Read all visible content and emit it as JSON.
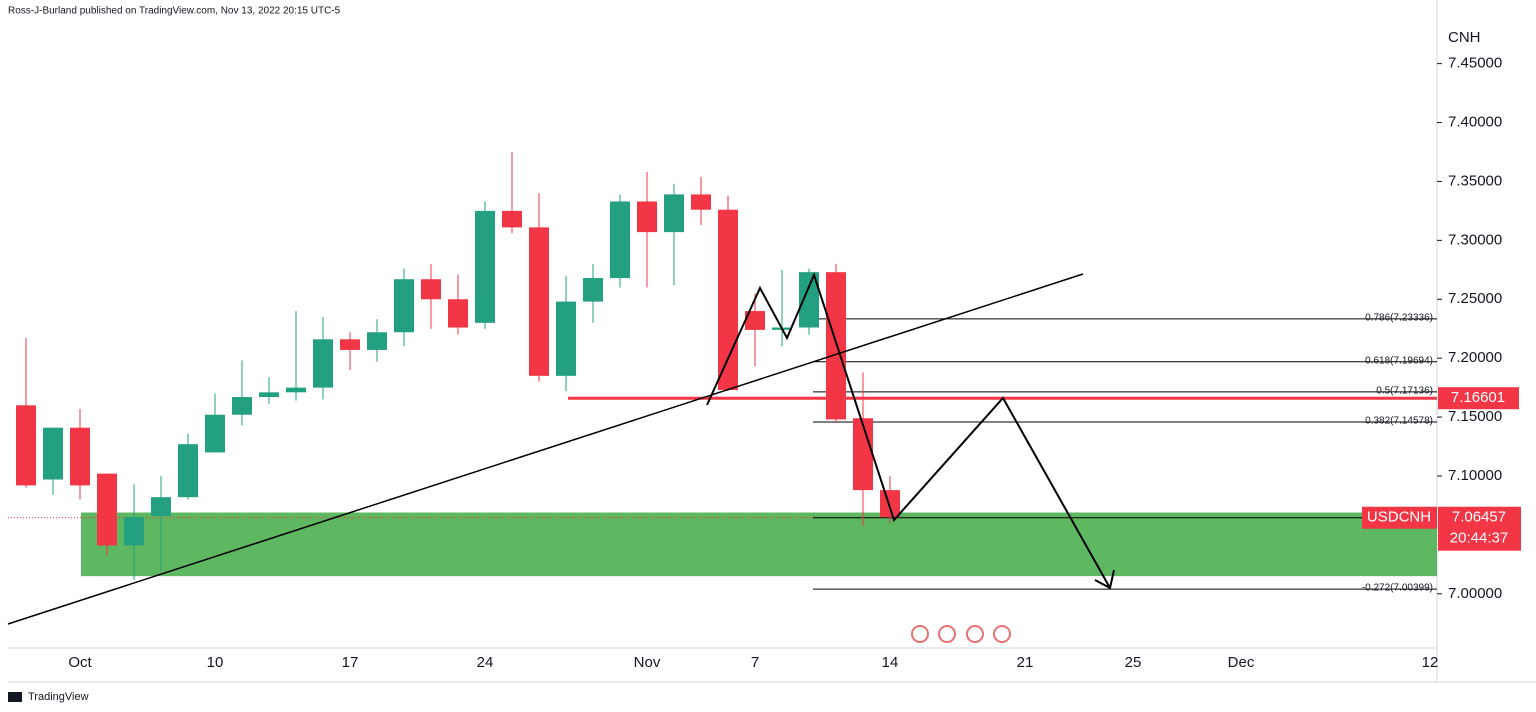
{
  "header": {
    "publisher": "Ross-J-Burland published on TradingView.com, Nov 13, 2022 20:15 UTC-5"
  },
  "footer": {
    "brand": "TradingView"
  },
  "chart_data": {
    "type": "candlestick",
    "currency": "CNH",
    "symbol": "USDCNH",
    "last_price": 7.06457,
    "countdown": "20:44:37",
    "level": 7.16601,
    "up_color": "#22a07f",
    "down_color": "#f23645",
    "zone": [
      7.015,
      7.069
    ],
    "zone_color": "#4caf50",
    "ylim": [
      6.954,
      7.504
    ],
    "yticks": [
      {
        "value": 7.45,
        "label": "7.45000"
      },
      {
        "value": 7.4,
        "label": "7.40000"
      },
      {
        "value": 7.35,
        "label": "7.35000"
      },
      {
        "value": 7.3,
        "label": "7.30000"
      },
      {
        "value": 7.25,
        "label": "7.25000"
      },
      {
        "value": 7.2,
        "label": "7.20000"
      },
      {
        "value": 7.15,
        "label": "7.15000"
      },
      {
        "value": 7.1,
        "label": "7.10000"
      },
      {
        "value": 7.0,
        "label": "7.00000"
      }
    ],
    "xticks": [
      {
        "value": 2,
        "label": "Oct"
      },
      {
        "value": 7,
        "label": "10"
      },
      {
        "value": 12,
        "label": "17"
      },
      {
        "value": 17,
        "label": "24"
      },
      {
        "value": 23,
        "label": "Nov"
      },
      {
        "value": 27,
        "label": "7"
      },
      {
        "value": 32,
        "label": "14"
      },
      {
        "value": 37,
        "label": "21"
      },
      {
        "value": 41,
        "label": "25"
      },
      {
        "value": 45,
        "label": "Dec"
      },
      {
        "value": 52,
        "label": "12"
      }
    ],
    "fib": [
      {
        "label": "0.786(7.23336)",
        "value": 7.23336
      },
      {
        "label": "0.618(7.19694)",
        "value": 7.19694
      },
      {
        "label": "0.5(7.17136)",
        "value": 7.17136
      },
      {
        "label": "0.382(7.14578)",
        "value": 7.14578
      },
      {
        "label": "-0.272(7.00399)",
        "value": 7.00399
      }
    ],
    "open": [
      7.16,
      7.097,
      7.141,
      7.102,
      7.041,
      7.066,
      7.082,
      7.12,
      7.152,
      7.167,
      7.171,
      7.175,
      7.216,
      7.207,
      7.222,
      7.267,
      7.25,
      7.23,
      7.325,
      7.311,
      7.185,
      7.248,
      7.268,
      7.333,
      7.307,
      7.339,
      7.326,
      7.24,
      7.224,
      7.226,
      7.273,
      7.149,
      7.088
    ],
    "high": [
      7.217,
      7.141,
      7.157,
      7.102,
      7.093,
      7.1,
      7.136,
      7.17,
      7.198,
      7.184,
      7.24,
      7.235,
      7.222,
      7.233,
      7.276,
      7.28,
      7.271,
      7.333,
      7.375,
      7.34,
      7.27,
      7.28,
      7.339,
      7.358,
      7.348,
      7.354,
      7.338,
      7.255,
      7.275,
      7.276,
      7.28,
      7.188,
      7.1
    ],
    "low": [
      7.09,
      7.084,
      7.08,
      7.032,
      7.012,
      7.02,
      7.08,
      7.12,
      7.143,
      7.161,
      7.164,
      7.165,
      7.19,
      7.197,
      7.21,
      7.225,
      7.22,
      7.225,
      7.306,
      7.18,
      7.172,
      7.23,
      7.26,
      7.26,
      7.262,
      7.313,
      7.172,
      7.193,
      7.21,
      7.22,
      7.145,
      7.058,
      7.06
    ],
    "close": [
      7.092,
      7.141,
      7.092,
      7.041,
      7.065,
      7.082,
      7.127,
      7.152,
      7.167,
      7.171,
      7.175,
      7.216,
      7.207,
      7.222,
      7.267,
      7.25,
      7.226,
      7.325,
      7.311,
      7.185,
      7.248,
      7.268,
      7.333,
      7.307,
      7.339,
      7.326,
      7.173,
      7.224,
      7.226,
      7.273,
      7.148,
      7.088,
      7.065
    ]
  }
}
